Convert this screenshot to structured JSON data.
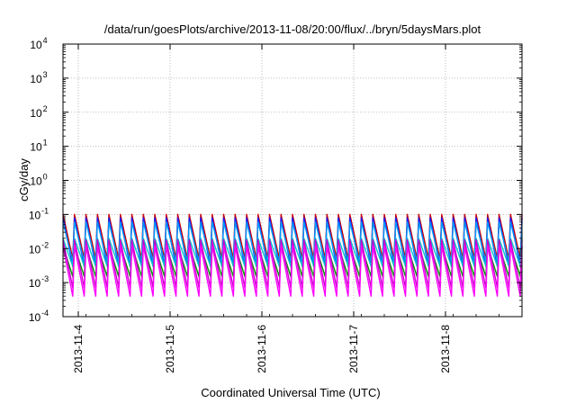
{
  "chart_data": {
    "type": "line",
    "title": "/data/run/goesPlots/archive/2013-11-08/20:00/flux/../bryn/5daysMars.plot",
    "xlabel": "Coordinated Universal Time (UTC)",
    "ylabel": "cGy/day",
    "yscale": "log",
    "ylim": [
      0.0001,
      10000
    ],
    "y_ticks": [
      {
        "value": 0.0001,
        "base": "10",
        "exp": "-4"
      },
      {
        "value": 0.001,
        "base": "10",
        "exp": "-3"
      },
      {
        "value": 0.01,
        "base": "10",
        "exp": "-2"
      },
      {
        "value": 0.1,
        "base": "10",
        "exp": "-1"
      },
      {
        "value": 1,
        "base": "10",
        "exp": "0"
      },
      {
        "value": 10,
        "base": "10",
        "exp": "1"
      },
      {
        "value": 100,
        "base": "10",
        "exp": "2"
      },
      {
        "value": 1000,
        "base": "10",
        "exp": "3"
      },
      {
        "value": 10000,
        "base": "10",
        "exp": "4"
      }
    ],
    "xlim": [
      "2013-11-03 20:00",
      "2013-11-08 20:00"
    ],
    "x_ticks": [
      "2013-11-4",
      "2013-11-5",
      "2013-11-6",
      "2013-11-7",
      "2013-11-8"
    ],
    "grid": true,
    "oscillation": {
      "cycles_per_day": 8,
      "start": "2013-11-03 20:00",
      "end": "2013-11-08 20:00"
    },
    "series": [
      {
        "color": "#cc0000",
        "peak": 0.1,
        "trough": 0.005
      },
      {
        "color": "#1a1aff",
        "peak": 0.08,
        "trough": 0.003
      },
      {
        "color": "#0099ff",
        "peak": 0.06,
        "trough": 0.004
      },
      {
        "color": "#00cccc",
        "peak": 0.02,
        "trough": 0.003
      },
      {
        "color": "#009900",
        "peak": 0.012,
        "trough": 0.0015
      },
      {
        "color": "#cc00cc",
        "peak": 0.018,
        "trough": 0.0007
      },
      {
        "color": "#ff00ff",
        "peak": 0.012,
        "trough": 0.0004
      }
    ]
  }
}
